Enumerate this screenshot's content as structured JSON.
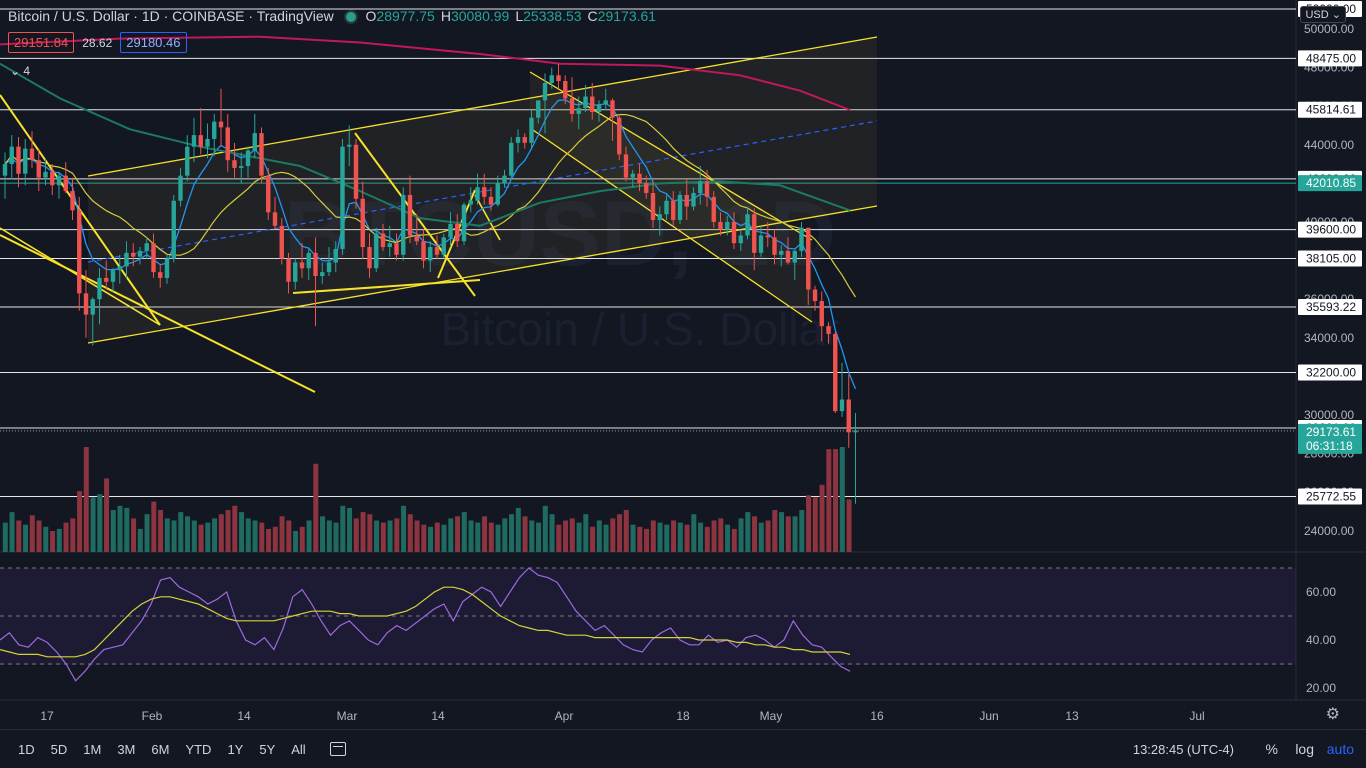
{
  "header": {
    "title": "Bitcoin / U.S. Dollar · 1D · COINBASE · TradingView",
    "ohlc": [
      {
        "k": "O",
        "v": "28977.75"
      },
      {
        "k": "H",
        "v": "30080.99"
      },
      {
        "k": "L",
        "v": "25338.53"
      },
      {
        "k": "C",
        "v": "29173.61"
      }
    ]
  },
  "bid": "29151.84",
  "spread": "28.62",
  "ask": "29180.46",
  "indicator_count": "4",
  "currency": "USD",
  "watermark": {
    "symbol": "BTCUSD, 1D",
    "name": "Bitcoin / U.S. Dollar"
  },
  "colors": {
    "background": "#131722",
    "up": "#26a69a",
    "down": "#ef5350",
    "trendline": "#f7e22a",
    "ma200": "#c2185b",
    "ma_green": "#1c7a63",
    "ema_blue": "#2196f3",
    "rsi": "#9c6ade",
    "rsi_ma": "#d4d43a"
  },
  "chart_data": {
    "type": "candlestick",
    "title": "Bitcoin / U.S. Dollar · 1D · COINBASE",
    "y_range": [
      22900,
      51500
    ],
    "x_tick_labels": [
      "17",
      "Feb",
      "14",
      "Mar",
      "14",
      "Apr",
      "18",
      "May",
      "16",
      "Jun",
      "13",
      "Jul"
    ],
    "horizontal_levels": [
      "50000.00",
      "48475.00",
      "45814.61",
      "42233.66",
      "42010.85",
      "39600.00",
      "38105.00",
      "35593.22",
      "32200.00",
      "29321.90",
      "29173.61",
      "25772.55"
    ],
    "axis_tick_labels": [
      "50000.00",
      "48000.00",
      "46000.00",
      "44000.00",
      "42000.00",
      "40000.00",
      "38000.00",
      "36000.00",
      "34000.00",
      "32000.00",
      "30000.00",
      "28000.00",
      "26000.00",
      "24000.00"
    ],
    "last_price": "29173.61",
    "countdown": "06:31:18",
    "ohlc": [
      [
        42400,
        43600,
        41200,
        43000
      ],
      [
        43000,
        44500,
        42200,
        43900
      ],
      [
        43900,
        44400,
        41800,
        42500
      ],
      [
        42500,
        44300,
        41900,
        43800
      ],
      [
        43800,
        44700,
        42800,
        43200
      ],
      [
        43200,
        43800,
        41600,
        42300
      ],
      [
        42300,
        43300,
        41900,
        42600
      ],
      [
        42600,
        43000,
        41400,
        41900
      ],
      [
        41900,
        42600,
        41200,
        42400
      ],
      [
        42400,
        43100,
        41500,
        41600
      ],
      [
        41600,
        42300,
        40100,
        40600
      ],
      [
        40600,
        41300,
        35400,
        36300
      ],
      [
        36300,
        37500,
        34000,
        35200
      ],
      [
        35200,
        36100,
        33600,
        36000
      ],
      [
        36000,
        37600,
        34700,
        37100
      ],
      [
        37100,
        38000,
        36500,
        36900
      ],
      [
        36900,
        37600,
        36400,
        37500
      ],
      [
        37500,
        38300,
        36800,
        37700
      ],
      [
        37700,
        39000,
        37100,
        38400
      ],
      [
        38400,
        38900,
        37700,
        38200
      ],
      [
        38200,
        38700,
        37800,
        38500
      ],
      [
        38500,
        39200,
        38100,
        38900
      ],
      [
        38900,
        39400,
        37100,
        37400
      ],
      [
        37400,
        37800,
        36600,
        37100
      ],
      [
        37100,
        38300,
        36800,
        38100
      ],
      [
        38100,
        41400,
        37900,
        41100
      ],
      [
        41100,
        42800,
        40800,
        42400
      ],
      [
        42400,
        44500,
        42100,
        43900
      ],
      [
        43900,
        45400,
        43100,
        44500
      ],
      [
        44500,
        45900,
        43500,
        43900
      ],
      [
        43900,
        45100,
        43300,
        44300
      ],
      [
        44300,
        45600,
        43400,
        45200
      ],
      [
        45200,
        46900,
        43900,
        44900
      ],
      [
        44900,
        45600,
        42600,
        43200
      ],
      [
        43200,
        44100,
        42300,
        42800
      ],
      [
        42800,
        43600,
        42000,
        42900
      ],
      [
        42900,
        43900,
        42300,
        43700
      ],
      [
        43700,
        45600,
        43300,
        44600
      ],
      [
        44600,
        44900,
        42000,
        42400
      ],
      [
        42400,
        42800,
        40100,
        40500
      ],
      [
        40500,
        41300,
        39600,
        39800
      ],
      [
        39800,
        40200,
        37800,
        38100
      ],
      [
        38100,
        38400,
        36300,
        36900
      ],
      [
        36900,
        38100,
        36500,
        37900
      ],
      [
        37900,
        38900,
        37100,
        37600
      ],
      [
        37600,
        38600,
        37000,
        38400
      ],
      [
        38400,
        39200,
        34600,
        37200
      ],
      [
        37200,
        37900,
        36800,
        37400
      ],
      [
        37400,
        38700,
        37200,
        37900
      ],
      [
        37900,
        39000,
        37400,
        38600
      ],
      [
        38600,
        44300,
        38300,
        43900
      ],
      [
        43900,
        45000,
        42900,
        44000
      ],
      [
        44000,
        44300,
        40700,
        41200
      ],
      [
        41200,
        42100,
        38100,
        38700
      ],
      [
        38700,
        39400,
        37100,
        37600
      ],
      [
        37600,
        39700,
        37400,
        39400
      ],
      [
        39400,
        39900,
        38500,
        38700
      ],
      [
        38700,
        39800,
        38200,
        38900
      ],
      [
        38900,
        39400,
        38000,
        38300
      ],
      [
        38300,
        41800,
        38000,
        41400
      ],
      [
        41400,
        42400,
        38900,
        39300
      ],
      [
        39300,
        40400,
        38800,
        39000
      ],
      [
        39000,
        39600,
        37600,
        38000
      ],
      [
        38000,
        39000,
        37400,
        38700
      ],
      [
        38700,
        39300,
        38100,
        38300
      ],
      [
        38300,
        39400,
        38100,
        39200
      ],
      [
        39200,
        40500,
        38700,
        39900
      ],
      [
        39900,
        40400,
        38700,
        39000
      ],
      [
        39000,
        41000,
        38800,
        40900
      ],
      [
        40900,
        41800,
        40500,
        41100
      ],
      [
        41100,
        42500,
        40900,
        41800
      ],
      [
        41800,
        42500,
        40900,
        41300
      ],
      [
        41300,
        41800,
        40600,
        40900
      ],
      [
        40900,
        42400,
        40800,
        42000
      ],
      [
        42000,
        42700,
        41800,
        42400
      ],
      [
        42400,
        44400,
        42200,
        44100
      ],
      [
        44100,
        44800,
        43600,
        44400
      ],
      [
        44400,
        44600,
        43800,
        44100
      ],
      [
        44100,
        45800,
        43800,
        45400
      ],
      [
        45400,
        46200,
        45100,
        46300
      ],
      [
        46300,
        47700,
        44600,
        47200
      ],
      [
        47200,
        48000,
        46900,
        47600
      ],
      [
        47600,
        48200,
        46900,
        47300
      ],
      [
        47300,
        47600,
        46100,
        46400
      ],
      [
        46400,
        47500,
        45200,
        45600
      ],
      [
        45600,
        46500,
        44800,
        45900
      ],
      [
        45900,
        47100,
        45700,
        46500
      ],
      [
        46500,
        47200,
        45300,
        45700
      ],
      [
        45700,
        46300,
        45200,
        46100
      ],
      [
        46100,
        46900,
        45800,
        46300
      ],
      [
        46300,
        46400,
        44200,
        45400
      ],
      [
        45400,
        45600,
        43200,
        43500
      ],
      [
        43500,
        43900,
        42100,
        42300
      ],
      [
        42300,
        42700,
        41800,
        42500
      ],
      [
        42500,
        43000,
        41600,
        42000
      ],
      [
        42000,
        42400,
        41200,
        41500
      ],
      [
        41500,
        42100,
        39700,
        40100
      ],
      [
        40100,
        40800,
        39300,
        40400
      ],
      [
        40400,
        41400,
        40100,
        41100
      ],
      [
        41100,
        41600,
        39800,
        40100
      ],
      [
        40100,
        41600,
        39900,
        41400
      ],
      [
        41400,
        42200,
        40100,
        40800
      ],
      [
        40800,
        41800,
        40600,
        41500
      ],
      [
        41500,
        42900,
        40900,
        42100
      ],
      [
        42100,
        42700,
        40800,
        41300
      ],
      [
        41300,
        41600,
        39700,
        40000
      ],
      [
        40000,
        40500,
        39300,
        39600
      ],
      [
        39600,
        40300,
        39300,
        40000
      ],
      [
        40000,
        40500,
        38600,
        38900
      ],
      [
        38900,
        39600,
        38500,
        39300
      ],
      [
        39300,
        40800,
        39100,
        40400
      ],
      [
        40400,
        40700,
        37500,
        38400
      ],
      [
        38400,
        39800,
        38200,
        39300
      ],
      [
        39300,
        40000,
        38700,
        39200
      ],
      [
        39200,
        39600,
        37800,
        38300
      ],
      [
        38300,
        38800,
        37700,
        38500
      ],
      [
        38500,
        39200,
        37800,
        37900
      ],
      [
        37900,
        38600,
        37000,
        38500
      ],
      [
        38500,
        40000,
        38200,
        39700
      ],
      [
        39700,
        39700,
        35700,
        36500
      ],
      [
        36500,
        36700,
        35400,
        35900
      ],
      [
        35900,
        36400,
        33800,
        34600
      ],
      [
        34600,
        34800,
        33700,
        34200
      ],
      [
        34200,
        34300,
        30100,
        30200
      ],
      [
        30200,
        32700,
        29900,
        30800
      ],
      [
        30800,
        32100,
        28300,
        29100
      ],
      [
        29100,
        30100,
        25400,
        29200
      ]
    ],
    "volume_rel": [
      0.28,
      0.38,
      0.3,
      0.26,
      0.35,
      0.3,
      0.24,
      0.2,
      0.22,
      0.28,
      0.32,
      0.58,
      1.0,
      0.52,
      0.55,
      0.7,
      0.4,
      0.44,
      0.42,
      0.32,
      0.22,
      0.36,
      0.48,
      0.4,
      0.32,
      0.3,
      0.38,
      0.34,
      0.3,
      0.26,
      0.28,
      0.32,
      0.36,
      0.4,
      0.44,
      0.38,
      0.32,
      0.3,
      0.28,
      0.22,
      0.24,
      0.34,
      0.3,
      0.2,
      0.24,
      0.3,
      0.84,
      0.34,
      0.3,
      0.28,
      0.44,
      0.42,
      0.32,
      0.38,
      0.36,
      0.3,
      0.28,
      0.3,
      0.32,
      0.44,
      0.36,
      0.3,
      0.26,
      0.24,
      0.28,
      0.26,
      0.32,
      0.34,
      0.38,
      0.3,
      0.28,
      0.34,
      0.28,
      0.26,
      0.32,
      0.36,
      0.42,
      0.34,
      0.3,
      0.28,
      0.44,
      0.36,
      0.26,
      0.3,
      0.32,
      0.28,
      0.36,
      0.24,
      0.3,
      0.26,
      0.32,
      0.36,
      0.4,
      0.26,
      0.24,
      0.22,
      0.3,
      0.28,
      0.26,
      0.3,
      0.28,
      0.26,
      0.36,
      0.28,
      0.24,
      0.3,
      0.32,
      0.26,
      0.22,
      0.32,
      0.38,
      0.34,
      0.28,
      0.3,
      0.4,
      0.38,
      0.34,
      0.34,
      0.4,
      0.54,
      0.52,
      0.64,
      0.98,
      0.98,
      1.0,
      0.5
    ],
    "rsi": {
      "y_ticks": [
        "60.00",
        "40.00",
        "20.00"
      ],
      "y_range": [
        15,
        75
      ],
      "levels": [
        70,
        50,
        30
      ],
      "values": [
        40,
        43,
        38,
        37,
        41,
        39,
        35,
        30,
        23,
        27,
        32,
        36,
        37,
        38,
        43,
        48,
        55,
        65,
        66,
        62,
        60,
        58,
        55,
        57,
        60,
        48,
        40,
        38,
        41,
        36,
        45,
        58,
        61,
        55,
        48,
        42,
        46,
        48,
        44,
        40,
        38,
        43,
        46,
        44,
        47,
        50,
        53,
        55,
        48,
        56,
        59,
        62,
        60,
        54,
        60,
        66,
        70,
        67,
        66,
        64,
        58,
        52,
        48,
        44,
        46,
        42,
        38,
        36,
        35,
        40,
        43,
        45,
        40,
        38,
        38,
        42,
        39,
        40,
        37,
        41,
        42,
        40,
        37,
        40,
        48,
        42,
        38,
        37,
        33,
        29,
        27
      ],
      "ma": [
        36,
        35,
        34,
        34,
        34,
        33,
        33,
        33,
        33,
        34,
        36,
        40,
        44,
        48,
        52,
        55,
        57,
        58,
        58,
        57,
        56,
        55,
        53,
        51,
        49,
        48,
        48,
        48,
        48,
        48,
        49,
        50,
        51,
        52,
        52,
        52,
        51,
        51,
        50,
        50,
        50,
        50,
        51,
        52,
        54,
        57,
        60,
        62,
        62,
        61,
        59,
        56,
        53,
        50,
        48,
        46,
        45,
        44,
        44,
        43,
        42,
        42,
        42,
        41,
        41,
        41,
        41,
        41,
        41,
        41,
        41,
        41,
        41,
        41,
        40,
        40,
        40,
        40,
        39,
        39,
        38,
        38,
        37,
        37,
        36,
        36,
        35,
        35,
        35,
        35,
        34
      ]
    }
  },
  "toolbar": {
    "timeframes": [
      "1D",
      "5D",
      "1M",
      "3M",
      "6M",
      "YTD",
      "1Y",
      "5Y",
      "All"
    ],
    "clock": "13:28:45 (UTC-4)",
    "percent": "%",
    "log": "log",
    "auto": "auto"
  }
}
